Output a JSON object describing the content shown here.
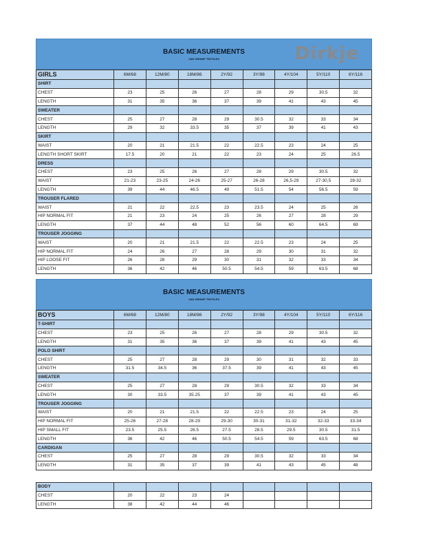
{
  "sizes": [
    "6M/68",
    "12M/80",
    "18M/86",
    "2Y/92",
    "3Y/98",
    "4Y/104",
    "5Y/110",
    "6Y/116"
  ],
  "banner": {
    "title": "BASIC MEASUREMENTS",
    "subtitle": "VAN GENNIP TEXTILES",
    "logo": "Dirkje"
  },
  "colors": {
    "banner": "#5b9bd5",
    "section": "#bdd7ee"
  },
  "girls": {
    "label": "GIRLS",
    "sections": [
      {
        "name": "SHIRT",
        "rows": [
          [
            "CHEST",
            "23",
            "25",
            "26",
            "27",
            "28",
            "29",
            "30.5",
            "32"
          ],
          [
            "LENGTH",
            "31",
            "35",
            "36",
            "37",
            "39",
            "41",
            "43",
            "45"
          ]
        ]
      },
      {
        "name": "SWEATER",
        "rows": [
          [
            "CHEST",
            "25",
            "27",
            "28",
            "29",
            "30.5",
            "32",
            "33",
            "34"
          ],
          [
            "LENGTH",
            "29",
            "32",
            "33.5",
            "35",
            "37",
            "39",
            "41",
            "43"
          ]
        ]
      },
      {
        "name": "SKIRT",
        "rows": [
          [
            "WAIST",
            "20",
            "21",
            "21.5",
            "22",
            "22.5",
            "23",
            "24",
            "25"
          ],
          [
            "LENGTH SHORT SKIRT",
            "17.5",
            "20",
            "21",
            "22",
            "23",
            "24",
            "25",
            "26.5"
          ]
        ]
      },
      {
        "name": "DRESS",
        "rows": [
          [
            "CHEST",
            "23",
            "25",
            "26",
            "27",
            "28",
            "29",
            "30.5",
            "32"
          ],
          [
            "WAIST",
            "21-23",
            "23-25",
            "24-26",
            "25-27",
            "26-28",
            "26,5-29",
            "27-30,5",
            "28-32"
          ],
          [
            "LENGTH",
            "39",
            "44",
            "46.5",
            "49",
            "51.5",
            "54",
            "56.5",
            "59"
          ]
        ]
      },
      {
        "name": "TROUSER FLARED",
        "rows": [
          [
            "WAIST",
            "21",
            "22",
            "22.5",
            "23",
            "23.5",
            "24",
            "25",
            "26"
          ],
          [
            "HIP NORMAL FIT",
            "21",
            "23",
            "24",
            "25",
            "26",
            "27",
            "28",
            "29"
          ],
          [
            "LENGTH",
            "37",
            "44",
            "48",
            "52",
            "56",
            "60",
            "64.5",
            "69"
          ]
        ]
      },
      {
        "name": "TROUSER JOGGING",
        "rows": [
          [
            "WAIST",
            "20",
            "21",
            "21.5",
            "22",
            "22.5",
            "23",
            "24",
            "25"
          ],
          [
            "HIP NORMAL FIT",
            "24",
            "26",
            "27",
            "28",
            "29",
            "30",
            "31",
            "32"
          ],
          [
            "HIP LOOSE FIT",
            "26",
            "28",
            "29",
            "30",
            "31",
            "32",
            "33",
            "34"
          ],
          [
            "LENGTH",
            "36",
            "42",
            "46",
            "50.5",
            "54.5",
            "59",
            "63.5",
            "68"
          ]
        ]
      }
    ]
  },
  "boys": {
    "label": "BOYS",
    "sections": [
      {
        "name": "T-SHIRT",
        "rows": [
          [
            "CHEST",
            "23",
            "25",
            "26",
            "27",
            "28",
            "29",
            "30.5",
            "32"
          ],
          [
            "LENGTH",
            "31",
            "35",
            "36",
            "37",
            "39",
            "41",
            "43",
            "45"
          ]
        ]
      },
      {
        "name": "POLO SHIRT",
        "rows": [
          [
            "CHEST",
            "25",
            "27",
            "28",
            "29",
            "30",
            "31",
            "32",
            "33"
          ],
          [
            "LENGTH",
            "31.5",
            "34.5",
            "36",
            "37.5",
            "39",
            "41",
            "43",
            "45"
          ]
        ]
      },
      {
        "name": "SWEATER",
        "rows": [
          [
            "CHEST",
            "25",
            "27",
            "28",
            "29",
            "30.5",
            "32",
            "33",
            "34"
          ],
          [
            "LENGTH",
            "30",
            "33.5",
            "35.25",
            "37",
            "39",
            "41",
            "43",
            "45"
          ]
        ]
      },
      {
        "name": "TROUSER JOGGING",
        "rows": [
          [
            "WAIST",
            "20",
            "21",
            "21.5",
            "22",
            "22.5",
            "23",
            "24",
            "25"
          ],
          [
            "HIP NORMAL FIT",
            "25-26",
            "27-28",
            "28-29",
            "29-30",
            "30-31",
            "31-32",
            "32-33",
            "33-34"
          ],
          [
            "HIP SMALL FIT",
            "23.5",
            "25.5",
            "26.5",
            "27.5",
            "28.5",
            "29.5",
            "30.5",
            "31.5"
          ],
          [
            "LENGTH",
            "36",
            "42",
            "46",
            "50.5",
            "54.5",
            "59",
            "63.5",
            "68"
          ]
        ]
      },
      {
        "name": "CARDIGAN",
        "rows": [
          [
            "CHEST",
            "25",
            "27",
            "28",
            "29",
            "30.5",
            "32",
            "33",
            "34"
          ],
          [
            "LENGTH",
            "31",
            "35",
            "37",
            "39",
            "41",
            "43",
            "45",
            "48"
          ]
        ]
      }
    ]
  },
  "body": {
    "sections": [
      {
        "name": "BODY",
        "rows": [
          [
            "CHEST",
            "20",
            "22",
            "23",
            "24",
            "",
            "",
            "",
            ""
          ],
          [
            "LENGTH",
            "38",
            "42",
            "44",
            "46",
            "",
            "",
            "",
            ""
          ]
        ]
      }
    ]
  }
}
